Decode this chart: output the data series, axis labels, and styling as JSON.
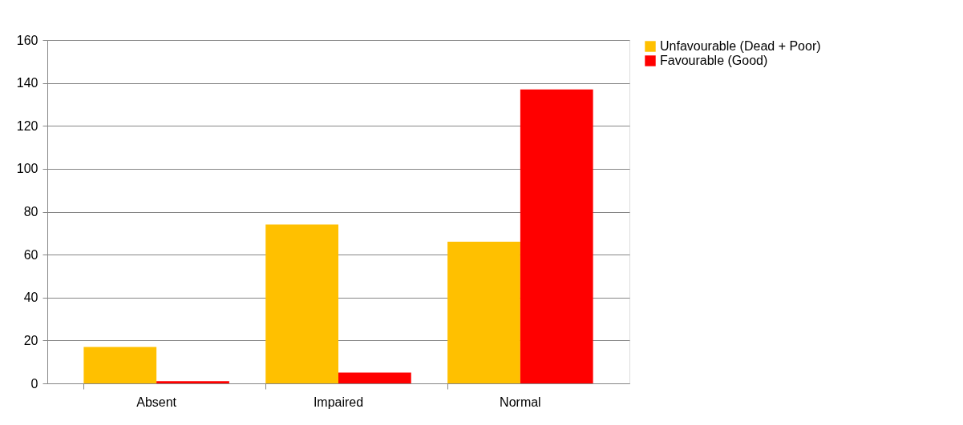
{
  "chart_data": {
    "type": "bar",
    "categories": [
      "Absent",
      "Impaired",
      "Normal"
    ],
    "series": [
      {
        "name": "Unfavourable (Dead + Poor)",
        "color": "#ffc000",
        "values": [
          17,
          74,
          66
        ]
      },
      {
        "name": "Favourable (Good)",
        "color": "#ff0000",
        "values": [
          1,
          5,
          137
        ]
      }
    ],
    "ylim": [
      0,
      160
    ],
    "yticks": [
      0,
      20,
      40,
      60,
      80,
      100,
      120,
      140,
      160
    ],
    "grid": "y",
    "legend": "right"
  }
}
